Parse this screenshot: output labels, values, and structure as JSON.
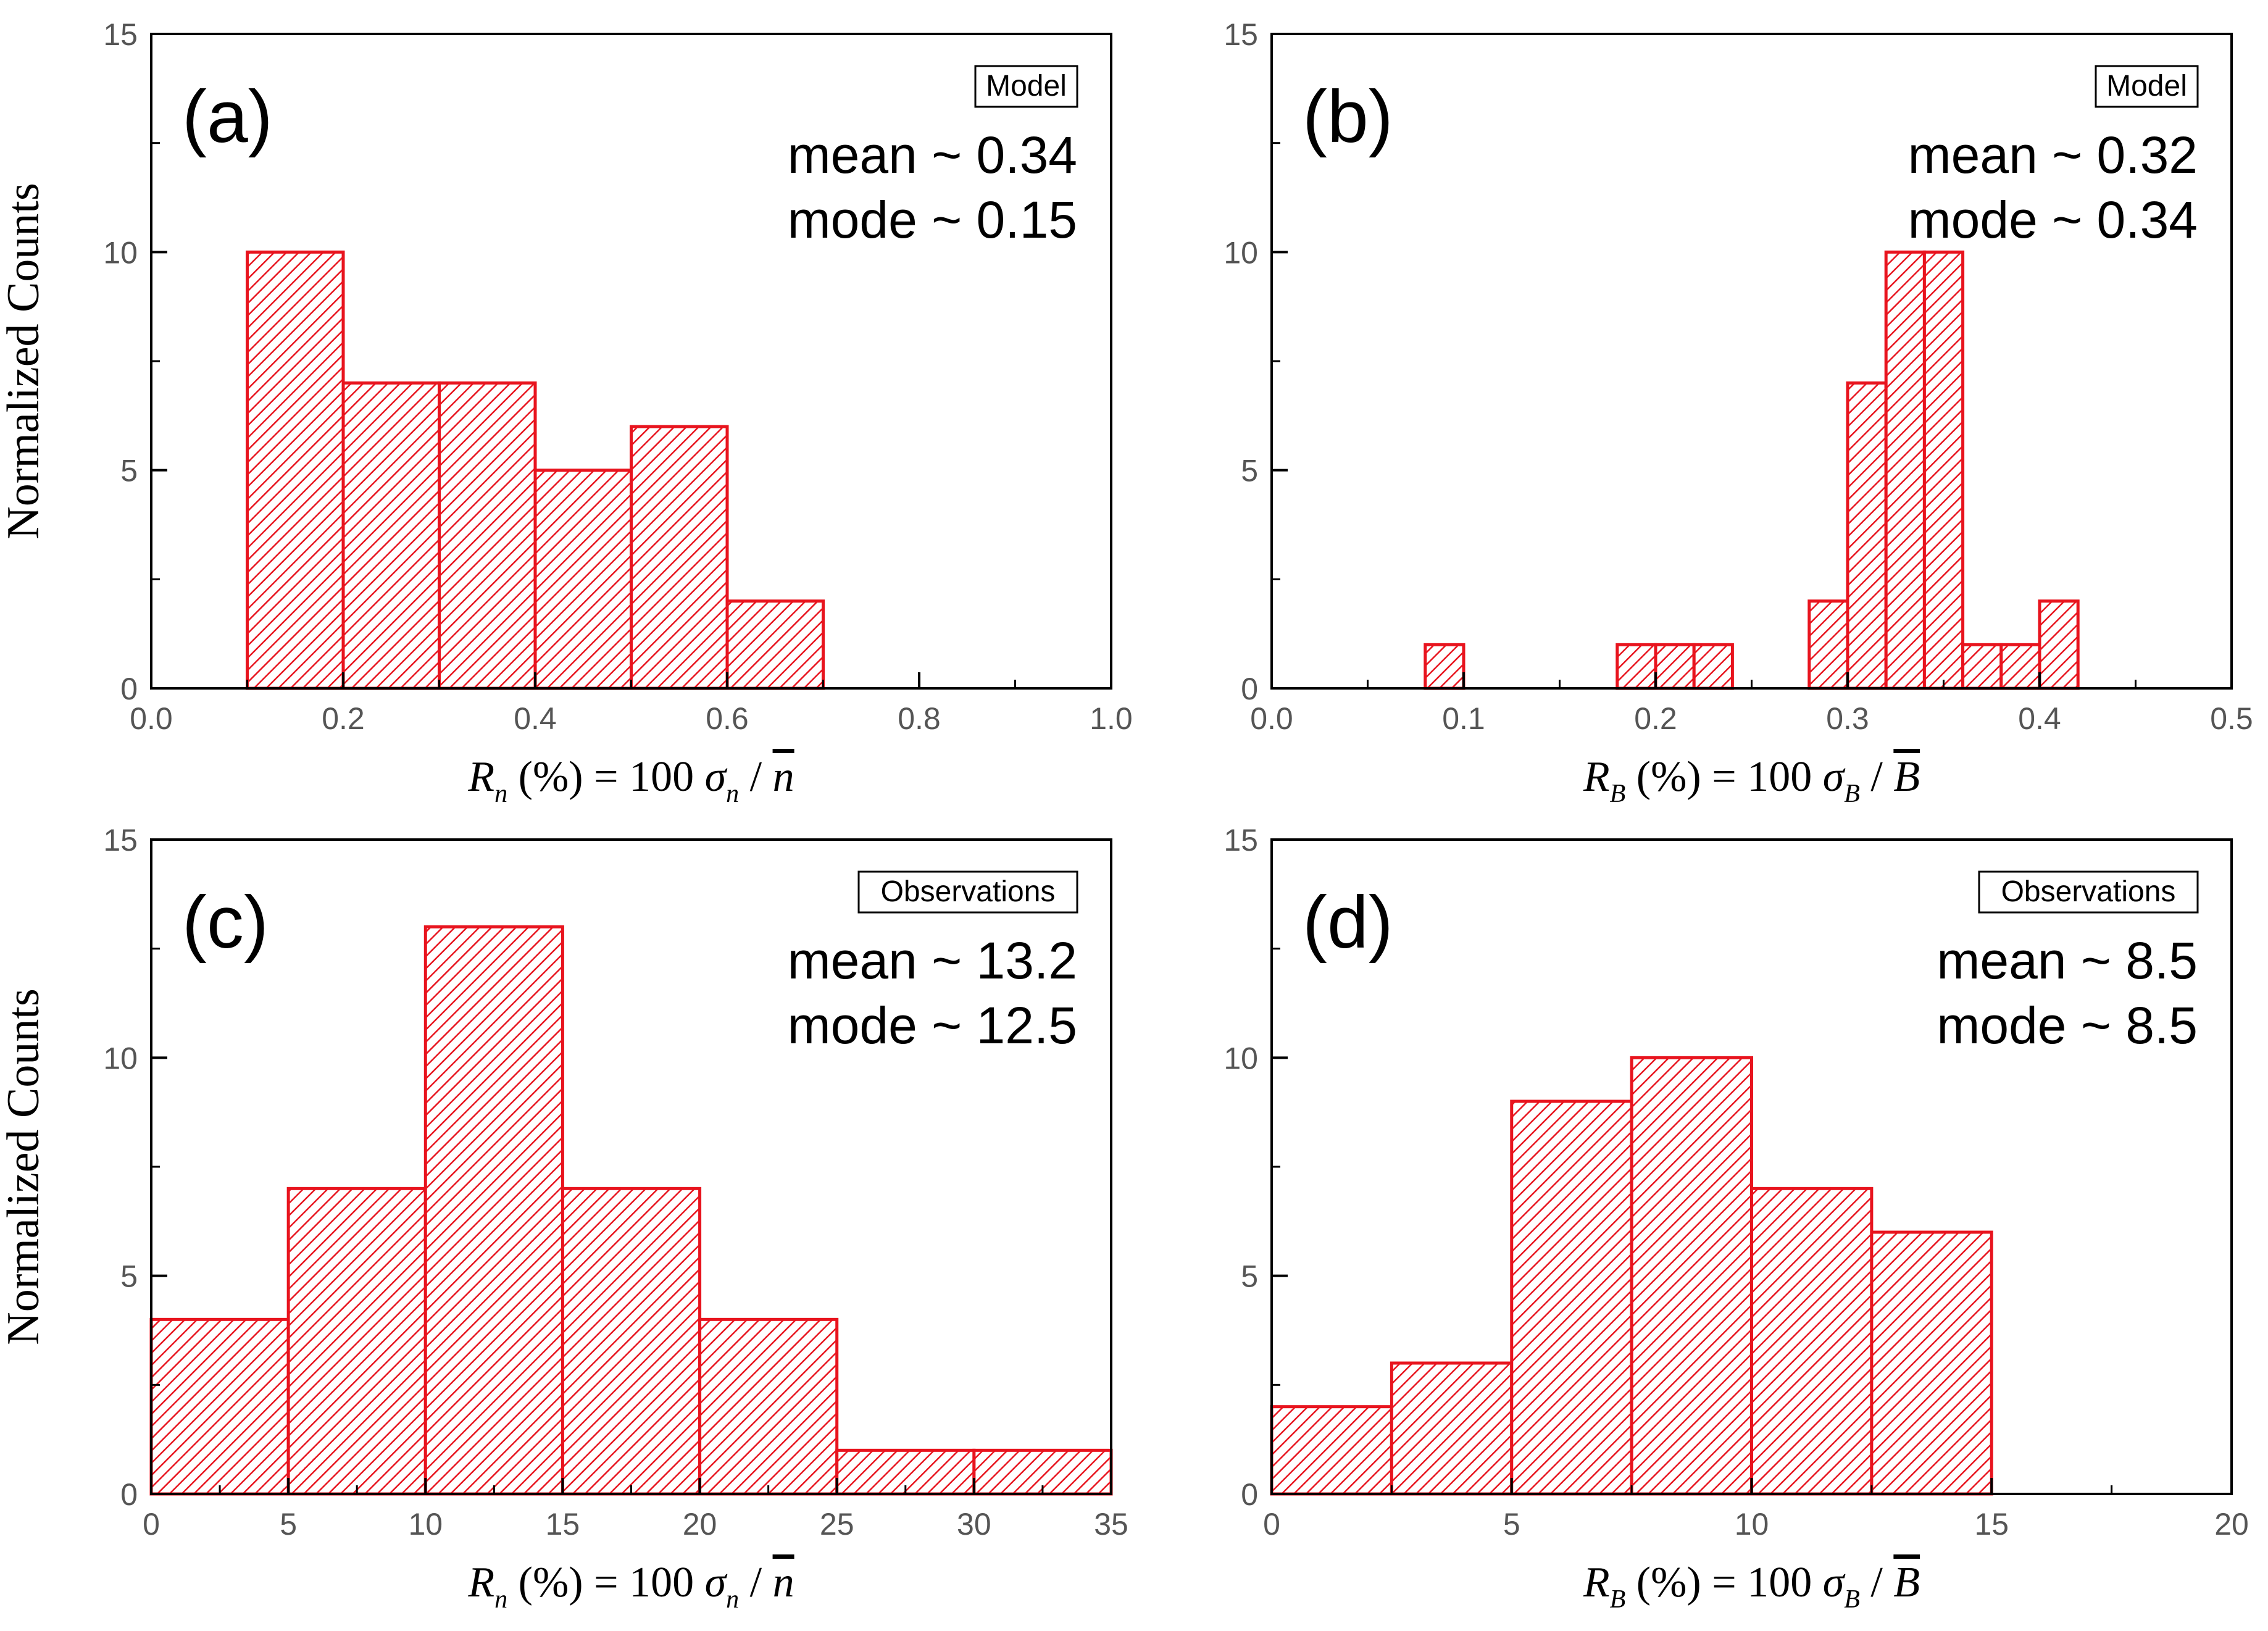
{
  "figure": {
    "colors": {
      "bar": "#e8141e",
      "hatch": "#e8141e",
      "axis": "#000000",
      "tick_label": "#555555"
    }
  },
  "chart_data": [
    {
      "type": "bar",
      "panel": "(a)",
      "tag": "Model",
      "stats": {
        "mean": "mean ~ 0.34",
        "mode": "mode ~ 0.15"
      },
      "ylabel": "Normalized Counts",
      "xlabel": {
        "var": "R",
        "sub": "n",
        "mid": " (%) = 100 ",
        "sigma": "σ",
        "sigma_sub": "n",
        "denom": "n"
      },
      "xlim": [
        0.0,
        1.0
      ],
      "ylim": [
        0,
        15
      ],
      "xticks": [
        0.0,
        0.2,
        0.4,
        0.6,
        0.8,
        1.0
      ],
      "xtick_labels": [
        "0.0",
        "0.2",
        "0.4",
        "0.6",
        "0.8",
        "1.0"
      ],
      "yticks": [
        0,
        5,
        10,
        15
      ],
      "ytick_labels": [
        "0",
        "5",
        "10",
        "15"
      ],
      "xminor": 0.1,
      "yminor": 2.5,
      "bins": [
        {
          "start": 0.1,
          "end": 0.2,
          "count": 10
        },
        {
          "start": 0.2,
          "end": 0.3,
          "count": 7
        },
        {
          "start": 0.3,
          "end": 0.4,
          "count": 7
        },
        {
          "start": 0.4,
          "end": 0.5,
          "count": 5
        },
        {
          "start": 0.5,
          "end": 0.6,
          "count": 6
        },
        {
          "start": 0.6,
          "end": 0.7,
          "count": 2
        }
      ]
    },
    {
      "type": "bar",
      "panel": "(b)",
      "tag": "Model",
      "stats": {
        "mean": "mean ~ 0.32",
        "mode": "mode ~ 0.34"
      },
      "ylabel": "",
      "xlabel": {
        "var": "R",
        "sub": "B",
        "mid": " (%) = 100 ",
        "sigma": "σ",
        "sigma_sub": "B",
        "denom": "B"
      },
      "xlim": [
        0.0,
        0.5
      ],
      "ylim": [
        0,
        15
      ],
      "xticks": [
        0.0,
        0.1,
        0.2,
        0.3,
        0.4,
        0.5
      ],
      "xtick_labels": [
        "0.0",
        "0.1",
        "0.2",
        "0.3",
        "0.4",
        "0.5"
      ],
      "yticks": [
        0,
        5,
        10,
        15
      ],
      "ytick_labels": [
        "0",
        "5",
        "10",
        "15"
      ],
      "xminor": 0.05,
      "yminor": 2.5,
      "bins": [
        {
          "start": 0.08,
          "end": 0.1,
          "count": 1
        },
        {
          "start": 0.18,
          "end": 0.2,
          "count": 1
        },
        {
          "start": 0.2,
          "end": 0.22,
          "count": 1
        },
        {
          "start": 0.22,
          "end": 0.24,
          "count": 1
        },
        {
          "start": 0.28,
          "end": 0.3,
          "count": 2
        },
        {
          "start": 0.3,
          "end": 0.32,
          "count": 7
        },
        {
          "start": 0.32,
          "end": 0.34,
          "count": 10
        },
        {
          "start": 0.34,
          "end": 0.36,
          "count": 10
        },
        {
          "start": 0.36,
          "end": 0.38,
          "count": 1
        },
        {
          "start": 0.38,
          "end": 0.4,
          "count": 1
        },
        {
          "start": 0.4,
          "end": 0.42,
          "count": 2
        }
      ]
    },
    {
      "type": "bar",
      "panel": "(c)",
      "tag": "Observations",
      "stats": {
        "mean": "mean ~ 13.2",
        "mode": "mode ~ 12.5"
      },
      "ylabel": "Normalized Counts",
      "xlabel": {
        "var": "R",
        "sub": "n",
        "mid": " (%) = 100 ",
        "sigma": "σ",
        "sigma_sub": "n",
        "denom": "n"
      },
      "xlim": [
        0,
        35
      ],
      "ylim": [
        0,
        15
      ],
      "xticks": [
        0,
        5,
        10,
        15,
        20,
        25,
        30,
        35
      ],
      "xtick_labels": [
        "0",
        "5",
        "10",
        "15",
        "20",
        "25",
        "30",
        "35"
      ],
      "yticks": [
        0,
        5,
        10,
        15
      ],
      "ytick_labels": [
        "0",
        "5",
        "10",
        "15"
      ],
      "xminor": 2.5,
      "yminor": 2.5,
      "bins": [
        {
          "start": 0,
          "end": 5,
          "count": 4
        },
        {
          "start": 5,
          "end": 10,
          "count": 7
        },
        {
          "start": 10,
          "end": 15,
          "count": 13
        },
        {
          "start": 15,
          "end": 20,
          "count": 7
        },
        {
          "start": 20,
          "end": 25,
          "count": 4
        },
        {
          "start": 25,
          "end": 30,
          "count": 1
        },
        {
          "start": 30,
          "end": 35,
          "count": 1
        }
      ]
    },
    {
      "type": "bar",
      "panel": "(d)",
      "tag": "Observations",
      "stats": {
        "mean": "mean ~ 8.5",
        "mode": "mode ~ 8.5"
      },
      "ylabel": "",
      "xlabel": {
        "var": "R",
        "sub": "B",
        "mid": " (%) = 100 ",
        "sigma": "σ",
        "sigma_sub": "B",
        "denom": "B"
      },
      "xlim": [
        0,
        20
      ],
      "ylim": [
        0,
        15
      ],
      "xticks": [
        0,
        5,
        10,
        15,
        20
      ],
      "xtick_labels": [
        "0",
        "5",
        "10",
        "15",
        "20"
      ],
      "yticks": [
        0,
        5,
        10,
        15
      ],
      "ytick_labels": [
        "0",
        "5",
        "10",
        "15"
      ],
      "xminor": 2.5,
      "yminor": 2.5,
      "bins": [
        {
          "start": 0,
          "end": 2.5,
          "count": 2
        },
        {
          "start": 2.5,
          "end": 5,
          "count": 3
        },
        {
          "start": 5,
          "end": 7.5,
          "count": 9
        },
        {
          "start": 7.5,
          "end": 10,
          "count": 10
        },
        {
          "start": 10,
          "end": 12.5,
          "count": 7
        },
        {
          "start": 12.5,
          "end": 15,
          "count": 6
        }
      ]
    }
  ]
}
